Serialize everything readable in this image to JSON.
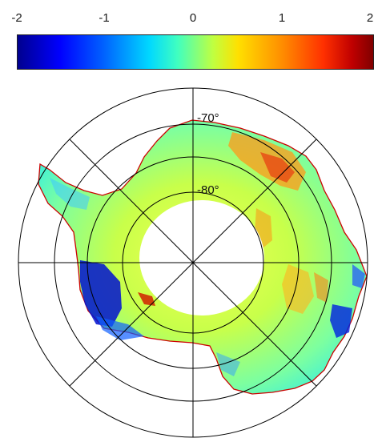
{
  "colorbar": {
    "ticks": [
      "-2",
      "-1",
      "0",
      "1",
      "2"
    ],
    "colors": [
      "#00008f",
      "#0000ff",
      "#00d8ff",
      "#c0ff40",
      "#ffe000",
      "#ff3000",
      "#800000"
    ]
  },
  "map": {
    "projection": "south-polar-stereographic",
    "latitude_labels": [
      "-70°",
      "-80°"
    ],
    "gridline_color": "#000000",
    "coastline_color": "#cc0000",
    "pole_hole_color": "#ffffff"
  }
}
